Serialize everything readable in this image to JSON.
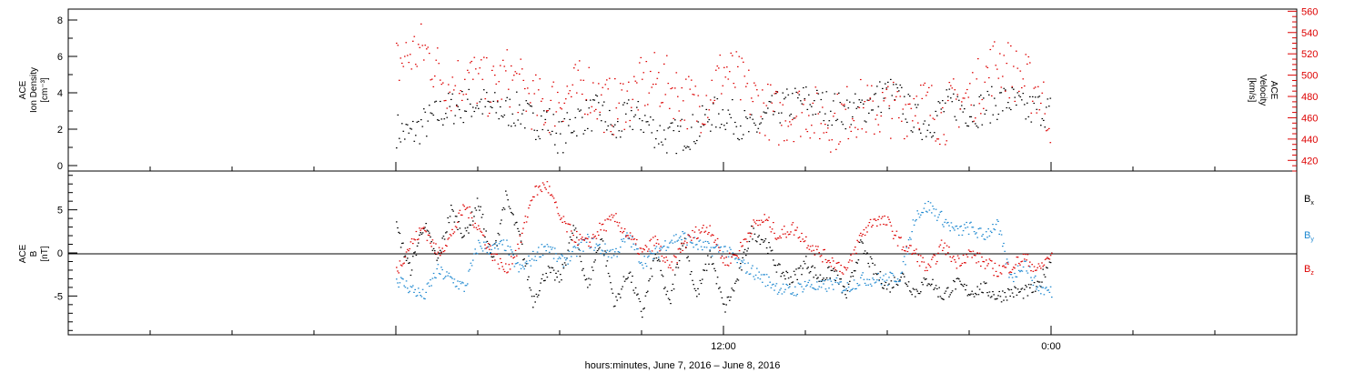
{
  "chart_data": [
    {
      "type": "scatter",
      "panel": "top",
      "ylabel_left_lines": [
        "ACE",
        "Ion Density",
        "[cm⁻³]"
      ],
      "ylabel_right_lines": [
        "ACE",
        "Velocity",
        "[km/s]"
      ],
      "yticks_left": [
        "0",
        "2",
        "4",
        "6",
        "8"
      ],
      "yticks_right": [
        "420",
        "440",
        "460",
        "480",
        "500",
        "520",
        "540",
        "560"
      ],
      "ylim_left": [
        -0.3,
        8.6
      ],
      "ylim_right": [
        410,
        562
      ],
      "colors": {
        "density": "#000000",
        "velocity": "#dd0000"
      },
      "series": [
        {
          "key": "density",
          "axis": "left",
          "x_hours": [
            0.0,
            0.5,
            1.0,
            1.5,
            2.0,
            2.5,
            3.0,
            3.5,
            4.0,
            4.5,
            5.0,
            5.5,
            6.0,
            6.5,
            7.0,
            7.5,
            8.0,
            8.5,
            9.0,
            9.5,
            10.0,
            10.5,
            11.0,
            11.5,
            12.0,
            12.5,
            13.0,
            13.5,
            14.0,
            14.5,
            15.0,
            15.5,
            16.0,
            16.5,
            17.0,
            17.5,
            18.0,
            18.5,
            19.0,
            19.5,
            20.0,
            20.5,
            21.0,
            21.5,
            22.0,
            22.5,
            23.0,
            23.5,
            24.0
          ],
          "values": [
            2.0,
            1.7,
            2.3,
            2.8,
            3.2,
            3.3,
            3.5,
            3.2,
            3.0,
            3.1,
            2.4,
            2.6,
            1.5,
            2.5,
            2.8,
            3.0,
            1.8,
            2.8,
            2.6,
            1.9,
            1.5,
            1.8,
            2.0,
            2.8,
            2.9,
            2.5,
            1.9,
            2.6,
            3.2,
            3.4,
            3.6,
            3.3,
            3.2,
            3.0,
            3.1,
            3.7,
            4.0,
            3.6,
            2.5,
            2.3,
            3.2,
            3.4,
            3.0,
            3.2,
            3.5,
            3.6,
            3.0,
            3.2,
            3.0
          ]
        },
        {
          "key": "velocity",
          "axis": "right",
          "x_hours": [
            0.0,
            0.5,
            1.0,
            1.5,
            2.0,
            2.5,
            3.0,
            3.5,
            4.0,
            4.5,
            5.0,
            5.5,
            6.0,
            6.5,
            7.0,
            7.5,
            8.0,
            8.5,
            9.0,
            9.5,
            10.0,
            10.5,
            11.0,
            11.5,
            12.0,
            12.5,
            13.0,
            13.5,
            14.0,
            14.5,
            15.0,
            15.5,
            16.0,
            16.5,
            17.0,
            17.5,
            18.0,
            18.5,
            19.0,
            19.5,
            20.0,
            20.5,
            21.0,
            21.5,
            22.0,
            22.5,
            23.0,
            23.5,
            24.0
          ],
          "values": [
            510,
            520,
            525,
            505,
            490,
            500,
            495,
            485,
            500,
            490,
            475,
            470,
            480,
            485,
            490,
            475,
            470,
            480,
            490,
            495,
            490,
            480,
            470,
            485,
            505,
            495,
            480,
            470,
            460,
            465,
            470,
            460,
            455,
            465,
            470,
            465,
            470,
            465,
            480,
            470,
            460,
            475,
            480,
            495,
            515,
            505,
            495,
            485,
            460
          ]
        }
      ]
    },
    {
      "type": "scatter",
      "panel": "bottom",
      "ylabel_lines": [
        "ACE",
        "B",
        "[nT]"
      ],
      "yticks": [
        "-5",
        "0",
        "5"
      ],
      "ylim": [
        -9.5,
        9.5
      ],
      "legend": [
        {
          "main": "B",
          "sub": "x",
          "color": "#000000"
        },
        {
          "main": "B",
          "sub": "y",
          "color": "#1e88d0"
        },
        {
          "main": "B",
          "sub": "z",
          "color": "#dd0000"
        }
      ],
      "series": [
        {
          "key": "Bx",
          "color": "#000000",
          "x_hours": [
            0.0,
            0.5,
            1.0,
            1.5,
            2.0,
            2.5,
            3.0,
            3.5,
            4.0,
            4.5,
            5.0,
            5.5,
            6.0,
            6.5,
            7.0,
            7.5,
            8.0,
            8.5,
            9.0,
            9.5,
            10.0,
            10.5,
            11.0,
            11.5,
            12.0,
            12.5,
            13.0,
            13.5,
            14.0,
            14.5,
            15.0,
            15.5,
            16.0,
            16.5,
            17.0,
            17.5,
            18.0,
            18.5,
            19.0,
            19.5,
            20.0,
            20.5,
            21.0,
            21.5,
            22.0,
            22.5,
            23.0,
            23.5,
            24.0
          ],
          "values": [
            3.0,
            -2.0,
            3.5,
            -1.0,
            5.0,
            2.0,
            6.0,
            -1.0,
            6.5,
            2.0,
            -5.5,
            -2.0,
            -3.0,
            3.0,
            -4.0,
            2.0,
            -6.0,
            -2.0,
            -7.0,
            0.0,
            -6.0,
            2.0,
            -5.0,
            0.0,
            -6.5,
            -3.0,
            2.5,
            1.5,
            -2.0,
            -3.0,
            -1.0,
            -3.0,
            -2.0,
            -5.0,
            1.0,
            -2.0,
            -4.0,
            -2.5,
            -4.5,
            -3.0,
            -5.0,
            -3.5,
            -4.5,
            -4.0,
            -5.0,
            -4.5,
            -4.5,
            -4.0,
            0.0
          ]
        },
        {
          "key": "By",
          "color": "#1e88d0",
          "x_hours": [
            0.0,
            0.5,
            1.0,
            1.5,
            2.0,
            2.5,
            3.0,
            3.5,
            4.0,
            4.5,
            5.0,
            5.5,
            6.0,
            6.5,
            7.0,
            7.5,
            8.0,
            8.5,
            9.0,
            9.5,
            10.0,
            10.5,
            11.0,
            11.5,
            12.0,
            12.5,
            13.0,
            13.5,
            14.0,
            14.5,
            15.0,
            15.5,
            16.0,
            16.5,
            17.0,
            17.5,
            18.0,
            18.5,
            19.0,
            19.5,
            20.0,
            20.5,
            21.0,
            21.5,
            22.0,
            22.5,
            23.0,
            23.5,
            24.0
          ],
          "values": [
            -3.0,
            -4.0,
            -5.0,
            -2.0,
            -3.0,
            -4.0,
            1.0,
            0.5,
            1.0,
            -2.0,
            -0.5,
            1.0,
            -1.0,
            0.0,
            1.5,
            0.5,
            0.0,
            2.0,
            -1.0,
            0.0,
            1.5,
            2.0,
            1.0,
            0.5,
            0.5,
            -1.0,
            -2.0,
            -3.0,
            -4.0,
            -4.5,
            -3.5,
            -4.0,
            -3.5,
            -4.0,
            -3.0,
            -3.0,
            -3.0,
            -2.5,
            4.5,
            5.5,
            4.0,
            2.5,
            3.0,
            2.0,
            3.5,
            -3.0,
            -1.0,
            -4.0,
            -4.5
          ]
        },
        {
          "key": "Bz",
          "color": "#dd0000",
          "x_hours": [
            0.0,
            0.5,
            1.0,
            1.5,
            2.0,
            2.5,
            3.0,
            3.5,
            4.0,
            4.5,
            5.0,
            5.5,
            6.0,
            6.5,
            7.0,
            7.5,
            8.0,
            8.5,
            9.0,
            9.5,
            10.0,
            10.5,
            11.0,
            11.5,
            12.0,
            12.5,
            13.0,
            13.5,
            14.0,
            14.5,
            15.0,
            15.5,
            16.0,
            16.5,
            17.0,
            17.5,
            18.0,
            18.5,
            19.0,
            19.5,
            20.0,
            20.5,
            21.0,
            21.5,
            22.0,
            22.5,
            23.0,
            23.5,
            24.0
          ],
          "values": [
            -2.0,
            1.0,
            3.0,
            0.0,
            2.0,
            5.5,
            3.0,
            0.0,
            -2.0,
            1.0,
            7.0,
            8.0,
            4.0,
            2.0,
            1.0,
            3.0,
            4.0,
            2.0,
            0.0,
            1.5,
            -2.0,
            1.0,
            2.5,
            3.0,
            -1.0,
            0.0,
            3.0,
            4.0,
            2.0,
            3.0,
            1.5,
            0.0,
            -1.0,
            -2.0,
            2.0,
            4.0,
            3.5,
            1.0,
            0.0,
            -2.0,
            1.0,
            -1.0,
            0.0,
            -1.0,
            -2.0,
            -1.5,
            -0.5,
            -2.0,
            0.0
          ]
        }
      ]
    }
  ],
  "x_axis": {
    "hours_range": [
      -12,
      33
    ],
    "labeled_ticks": [
      {
        "hour": 12,
        "label": "12:00"
      },
      {
        "hour": 24,
        "label": "0:00"
      }
    ],
    "xlabel": "hours:minutes,  June  7, 2016 – June  8, 2016"
  }
}
